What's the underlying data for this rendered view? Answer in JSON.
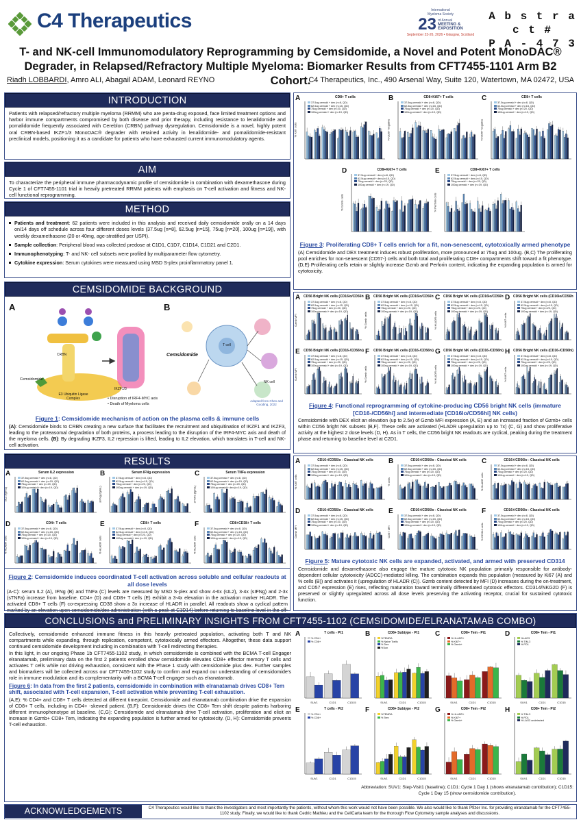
{
  "header": {
    "logo_text": "C4 Therapeutics",
    "meeting_logo": {
      "number": "23",
      "lines": [
        "International",
        "Myeloma Society",
        "rd Annual",
        "MEETING &",
        "EXPOSITION",
        "September 23-26, 2026 • Glasgow, Scotland"
      ]
    },
    "abstract_label": "A b s t r a c t #",
    "abstract_number": "P A - 4 7 3",
    "title_line1": "T- and NK-cell Immunomodulatory Reprogramming by Cemsidomide, a Novel and Potent MonoDAC®",
    "title_line2": "Degrader, in Relapsed/Refractory Multiple Myeloma: Biomarker Results from CFT7455-1101 Arm B2 Cohort.",
    "presenting_author": "Riadh LOBBARDI",
    "other_authors": ", Amro ALI, Abagail ADAM, Leonard REYNO",
    "affiliation": "C4 Therapeutics, Inc., 490 Arsenal Way, Suite 120, Watertown, MA 02472, USA"
  },
  "intro": {
    "heading": "INTRODUCTION",
    "text": "Patients with relapsed/refractory multiple myeloma (RRMM) who are penta-drug exposed, face limited treatment options and harbor immune compartments compromised by both disease and prior therapy, including resistance to lenalidomide and pomalidomide frequently associated with Cereblon (CRBN) pathway dysregulation. Cemsidomide is a novel, highly potent oral CRBN-based IKZF1/3 MonoDAC® degrader with retained activity in lenalidomide- and pomalidomide-resistant preclinical models, positioning it as a candidate for patients who have exhausted current immunomodulatory agents."
  },
  "aim": {
    "heading": "AIM",
    "text": "To characterize the peripheral immune pharmacodynamic profile of cemsidomide in combination with dexamethasone during Cycle 1 of CFT7455-1101 trial in heavily pretreated RRMM patients with emphasis on T-cell activation and fitness and NK-cell functional reprogramming."
  },
  "method": {
    "heading": "METHOD",
    "items": [
      {
        "label": "Patients and treatment",
        "text": ": 62 patients were included in this analysis and received daily cemsidomide orally on a 14 days on/14 days off schedule across four different doses levels (37.5ug [n=8], 62.5ug [n=15], 75ug [n=20], 100ug [n=19]), with weekly dexamethasone (20 or 40mg, age-stratified per USPI)."
      },
      {
        "label": "Sample collection",
        "text": ": Peripheral blood was collected predose at C1D1, C1D7, C1D14, C1D21 and C2D1."
      },
      {
        "label": "Immunophenotyping",
        "text": ": T- and NK- cell subsets were profiled by multiparameter flow cytometry."
      },
      {
        "label": "Cytokine expression",
        "text": ": Serum cytokines were measured using MSD S-plex proinflammatory panel 1."
      }
    ]
  },
  "background": {
    "heading": "CEMSIDOMIDE BACKGROUND",
    "panel_a": "A",
    "panel_b": "B",
    "cemsidomide_label": "Cemsidomide",
    "ligase_label": "E3 Ubiquitin Ligase Complex",
    "crbn_label": "CRBN",
    "ikzf_label": "IKZF1/3",
    "bullets": [
      "• Disruption of IRF4-MYC axis",
      "• Death of Myeloma cells"
    ],
    "tcell_label": "T cell",
    "nk_label": "NK cell",
    "adapted": "Adapted from Chen and Gooding, 2022",
    "fig_num": "Figure 1",
    "fig_title": ": Cemsidomide mechanism of action on the plasma cells & immune cells",
    "caption_a": "(A)",
    "caption_a_text": ": Cemsidomide binds to CRBN creating a new surface that facilitates the recruitment and ubiquitination of IKZF1 and IKZF3, leading to the proteasomal degradation of both proteins, a process leading to the disruption of the IRF4-MYC axis and death of the myeloma cells.",
    "caption_b": "(B)",
    "caption_b_text": ": By degrading IKZF3, IL2 repression is lifted, leading to IL2 elevation, which translates in T-cell and NK-cell activation."
  },
  "results": {
    "heading": "RESULTS",
    "fig_num": "Figure 2",
    "fig_title": ": Cemsidomide induces coordinated T-cell activation across soluble and cellular readouts at all dose levels",
    "caption": "(A-C): serum IL2 (A), IFNg (B) and TNFa (C) levels are measured by MSD S-plex and show 4-6x (sIL2), 3-4x (sIFNg) and 2-3x (sTNFa) increase from baseline. CD4+ (D) and CD8+ T cells (E) exhibit a 3-4x elevation in the activation marker HLADR. The activated CD8+ T cells (F) co-expressing CD38 show a 3x increase of HLADR in parallel. All readouts show a cyclical pattern marked by an elevation upon cemsidomide/dex administration (with a peak at C1D14) before returning to baseline level in the off-treatment period."
  },
  "legend": {
    "dose1": "37.5ug cemsid + dex (n=8, QD)",
    "dose2": "62.5ug cemsid + dex (n=15, QD)",
    "dose3": "75ug cemsid + dex (n=20, QD)",
    "dose4": "100ug cemsid + dex (n=19, QD)",
    "colors": [
      "#9fc8e6",
      "#5a86b5",
      "#2b4b8a",
      "#152245"
    ]
  },
  "fig2_panels": [
    {
      "letter": "A",
      "title": "Serum IL2 expression",
      "ylabel": "sIL2 (fg/mL)"
    },
    {
      "letter": "B",
      "title": "Serum IFNg expression",
      "ylabel": "sIFNg (fg/mL)"
    },
    {
      "letter": "C",
      "title": "Serum TNFa expression",
      "ylabel": "sTNFa (fg/mL)"
    },
    {
      "letter": "D",
      "title": "CD4+ T cells",
      "ylabel": "% HLADR cells"
    },
    {
      "letter": "E",
      "title": "CD8+ T cells",
      "ylabel": "% HLADR cells"
    },
    {
      "letter": "F",
      "title": "CD8+CD38+ T cells",
      "ylabel": "% HLADR cells"
    }
  ],
  "fig3_panels": [
    {
      "letter": "A",
      "title": "CD8+ T cells",
      "ylabel": "% Ki67 cells"
    },
    {
      "letter": "B",
      "title": "CD8+Ki67+ T cells",
      "ylabel": "% CD57 Negative"
    },
    {
      "letter": "C",
      "title": "CD8+ T cells",
      "ylabel": "% CD57 Negative"
    },
    {
      "letter": "D",
      "title": "CD8+Ki67+ T cells",
      "ylabel": "% Gzmb cells"
    },
    {
      "letter": "E",
      "title": "CD8+Ki67+ T cells",
      "ylabel": "% Perforin cells"
    }
  ],
  "fig3": {
    "fig_num": "Figure 3",
    "fig_title": ": Proliferating CD8+ T cells enrich for a fit, non-senescent, cytotoxically armed phenotype",
    "caption": "(A) Cemsidomide and DEX treatment induces robust proliferation, more pronounced at 75ug and 100ug. (B,C) The proliferating pool enriches for non-senescent (CD57-) cells and both total and proliferating CD8+ compartments shift toward a fit phenotype. (D,E) Proliferating cells retain or slightly increase Gzmb and Perforin content, indicating the expanding population is armed for cytotoxicity."
  },
  "fig4_panels": [
    {
      "letter": "A",
      "title": "CD56 Bright NK cells (CD16lo/CD56hi)",
      "ylabel": "Gzmb MFI"
    },
    {
      "letter": "B",
      "title": "CD56 Bright NK cells (CD16lo/CD56hi)",
      "ylabel": "% Gzmb cells"
    },
    {
      "letter": "C",
      "title": "CD56 Bright NK cells (CD16lo/CD56hi)",
      "ylabel": "% HLADR cells"
    },
    {
      "letter": "D",
      "title": "CD56 Bright NK cells (CD16lo/CD56hi)",
      "ylabel": "% Ki67 cells"
    },
    {
      "letter": "E",
      "title": "CD56 Bright NK cells (CD16-/CD56hi)",
      "ylabel": "Gzmb MFI"
    },
    {
      "letter": "F",
      "title": "CD56 Bright NK cells (CD16-/CD56hi)",
      "ylabel": "% Gzmb cells"
    },
    {
      "letter": "G",
      "title": "CD56 Bright NK cells (CD16-/CD56hi)",
      "ylabel": "% HLADR cells"
    },
    {
      "letter": "H",
      "title": "CD56 Bright NK cells (CD16-/CD56hi)",
      "ylabel": "% Ki67 cells"
    }
  ],
  "fig4": {
    "fig_num": "Figure 4",
    "fig_title": ": Functional reprogramming of cytokine-producing CD56 bright NK cells (immature [CD16-/CD56hi] and intermediate [CD16lo/CD56hi] NK cells)",
    "caption": "Cemsidomide with DEX elicit an elevation (up to 2.5x) of Gzmb MFI expression (A, E) and an increased fraction of Gzmb+ cells within CD56 bright NK subsets (B,F). These cells are activated (HLADR upregulation up to 7x) (C, G) and show proliferative activity at the highest 2 dose levels (D, H). As in T cells, the CD56 bright NK readouts are cyclical, peaking during the treatment phase and returning to baseline level at C2D1."
  },
  "fig5_panels": [
    {
      "letter": "A",
      "title": "CD16+/CD56lo - Classical NK cells",
      "ylabel": "% Ki67 cells"
    },
    {
      "letter": "B",
      "title": "CD16+/CD56lo - Classical NK cells",
      "ylabel": "% cells"
    },
    {
      "letter": "C",
      "title": "CD16+/CD56lo - Classical NK cells",
      "ylabel": "% HLADR cells"
    },
    {
      "letter": "D",
      "title": "CD16+/CD56lo - Classical NK cells",
      "ylabel": "Gzmb MFI"
    },
    {
      "letter": "E",
      "title": "CD16+/CD56lo - Classical NK cells",
      "ylabel": "CD57 MFI"
    },
    {
      "letter": "F",
      "title": "CD16+/CD56lo - Classical NK cells",
      "ylabel": "% CD314 cells"
    }
  ],
  "fig5": {
    "fig_num": "Figure 5",
    "fig_title": ": Mature cytotoxic NK cells are expanded, activated, and armed with preserved CD314",
    "caption": "Cemsidomide and dexamethasone also engage the mature cytotoxic NK population primarily responsible for antibody-dependent cellular cytotoxicity (ADCC)-mediated killing. The combination expands this population (measured by Ki67 (A) and % cells (B)) and activates it (upregulation of HLADR (C)). Gzmb content detected by MFI (D) increases during the on-treatment, and CD57 expression (E) rises, reflecting maturation toward terminally differentiated cytotoxic effectors. CD314/NKG2D (F) is preserved or slightly upregulated across all dose levels preserving the activating receptor, crucial for sustained cytotoxic function."
  },
  "conclusions": {
    "heading": "CONCLUSIONS and PRELIMINARY INSIGHTS FROM CFT7455-1102 (CEMSIDOMIDE/ELRANATAMAB COMBO)",
    "p1": "Collectively, cemsidomide enhanced immune fitness in this heavily pretreated population, activating both T and NK compartments while expanding, through replication, competent, cytotoxically armed effectors. Altogether, these data support continued cemsidomide development including in combination with T-cell redirecting therapies.",
    "p2": "In this light, in our ongoing Phase 1b CFT7455-1102 study, in which cemsidomide is combined with the BCMA T-cell Engager elranatamab, preliminary data on the first 2 patients enrolled show cemsidomide elevates CD8+ effector memory T cells and activates T cells while not driving exhaustion, consistent with the Phase 1 study with cemsidomide plus dex. Further samples and biomarkers will be collected across our CFT7455-1102 study to confirm and expand our understanding of cemsidomide's role in immune modulation and its complementarity with a BCMA T-cell engager such as elranatamab.",
    "fig_num": "Figure 6",
    "fig_title": ": In data from the first 2 patients, cemsidomide in combination with elranatamab drives CD8+ Tem shift, associated with T-cell expansion, T-cell activation while preventing T-cell exhaustion.",
    "caption": "(A,E): % CD4+ and CD8+ T cells detected at different timepoint. Cemsidomide and elranatamab combination drive the expansion of CD8+ T cells, including in CD4+ -skewed patient. (B,F): Cemsidomide drives the CD8+ Tem shift despite patients harboring different immunophenotype at baseline. (C,G): Cemsidomide and elranatamab drive T-cell activation, proliferation and elicit an increase in Gzmb+ CD8+ Tem, indicating the expanding population is further armed for cytotoxicity. (D, H): Cemsidomide prevents T-cell exhaustion.",
    "abbreviation": "Abbreviation: SUV1: Step-Visit1 (baseline); C1D1: Cycle 1 Day 1 (shows elranatamab contribution); C1D15: Cycle 1 Day 15 (show cemsidomide contribution)."
  },
  "fig6_panels": [
    {
      "letter": "A",
      "title": "T cells - Pt1",
      "legend": [
        "% CD4+",
        "% CD8+"
      ]
    },
    {
      "letter": "B",
      "title": "CD8+ Subtype - Pt1",
      "legend": [
        "%TEMRA",
        "% Naive Tcells",
        "% Tem",
        "%Tcm"
      ]
    },
    {
      "letter": "C",
      "title": "CD8+ Tem - Pt1",
      "legend": [
        "% HLADR+",
        "% Ki67+",
        "% Gzmb+"
      ]
    },
    {
      "letter": "D",
      "title": "CD8+ Tem - Pt1",
      "legend": [
        "%LAG3",
        "% TIM-3",
        "% PD1"
      ]
    },
    {
      "letter": "E",
      "title": "T cells - Pt2",
      "legend": [
        "% CD4+",
        "% CD8+"
      ]
    },
    {
      "letter": "F",
      "title": "CD8+ Subtype - Pt2",
      "legend": [
        "%TEMRA",
        "% Tem"
      ]
    },
    {
      "letter": "G",
      "title": "CD8+ Tem - Pt2",
      "legend": [
        "% HLADR+",
        "% Ki67+",
        "% Gzmb+"
      ]
    },
    {
      "letter": "H",
      "title": "CD8+ Tem - Pt2",
      "legend": [
        "% TIM-3",
        "% PD1",
        "% LAG3 undetected"
      ]
    }
  ],
  "fig6_xlabels": [
    "SUV1",
    "C1D1",
    "C1D15"
  ],
  "ack": {
    "heading": "ACKNOWLEDGEMENTS",
    "text": "C4 Therapeutics would like to thank the investigators and most importantly the patients, without whom this work would not have been possible. We also would like to thank Pfizer Inc. for providing elranatamab for the CFT7455-1102 study. Finally, we would like to thank Cedric Mathieu and the CellCarta team for the thorough Flow Cytometry sample analyses and discussions."
  },
  "timepoints": [
    "C1D1",
    "C1D7",
    "C1D14",
    "C1D21",
    "C2D1"
  ]
}
